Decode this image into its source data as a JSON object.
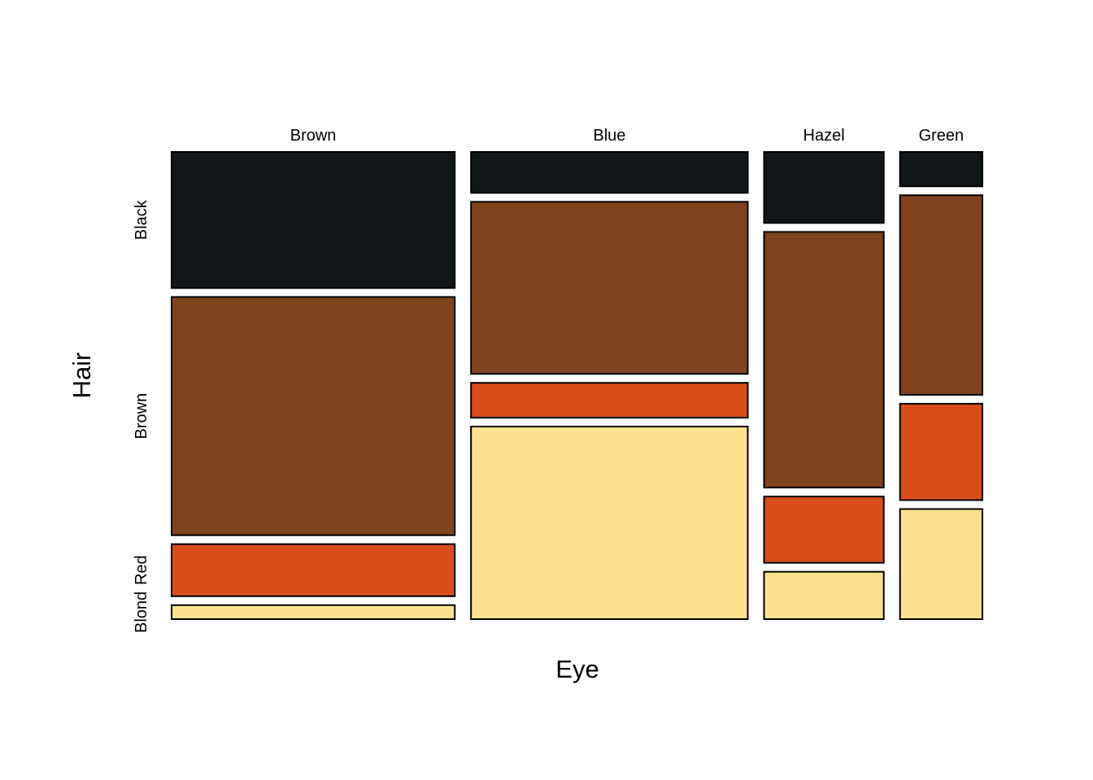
{
  "chart_data": {
    "type": "mosaic",
    "xlabel": "Eye",
    "ylabel": "Hair",
    "eye_categories": [
      "Brown",
      "Blue",
      "Hazel",
      "Green"
    ],
    "hair_categories": [
      "Black",
      "Brown",
      "Red",
      "Blond"
    ],
    "hair_colors": {
      "Black": "#111718",
      "Brown": "#7f431e",
      "Red": "#d84e1a",
      "Blond": "#fde18e"
    },
    "counts": {
      "Brown": {
        "Black": 68,
        "Brown": 119,
        "Red": 26,
        "Blond": 7
      },
      "Blue": {
        "Black": 20,
        "Brown": 84,
        "Red": 17,
        "Blond": 94
      },
      "Hazel": {
        "Black": 15,
        "Brown": 54,
        "Red": 14,
        "Blond": 10
      },
      "Green": {
        "Black": 5,
        "Brown": 29,
        "Red": 14,
        "Blond": 16
      }
    },
    "row_label_reference_column": "Brown",
    "legend": "none",
    "grid": false
  }
}
